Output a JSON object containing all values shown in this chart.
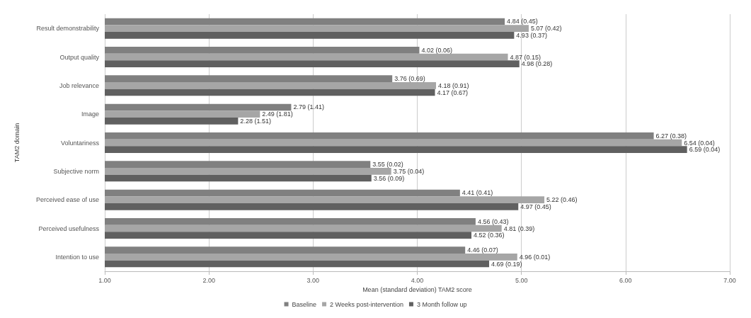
{
  "chart_data": {
    "type": "bar",
    "orientation": "horizontal",
    "xlabel": "Mean (standard deviation) TAM2 score",
    "ylabel": "TAM2 domain",
    "categories": [
      "Result demonstrability",
      "Output quality",
      "Job relevance",
      "Image",
      "Voluntariness",
      "Subjective norm",
      "Perceived ease of use",
      "Perceived usefulness",
      "Intention to use"
    ],
    "series": [
      {
        "name": "Baseline",
        "color": "#808080",
        "values": [
          4.84,
          4.02,
          3.76,
          2.79,
          6.27,
          3.55,
          4.41,
          4.56,
          4.46
        ],
        "value_labels": [
          "4.84 (0.45)",
          "4.02 (0.06)",
          "3.76 (0.69)",
          "2.79 (1.41)",
          "6.27 (0.38)",
          "3.55 (0.02)",
          "4.41 (0.41)",
          "4.56 (0.43)",
          "4.46 (0.07)"
        ]
      },
      {
        "name": "2 Weeks post-intervention",
        "color": "#a6a6a6",
        "values": [
          5.07,
          4.87,
          4.18,
          2.49,
          6.54,
          3.75,
          5.22,
          4.81,
          4.96
        ],
        "value_labels": [
          "5.07 (0.42)",
          "4.87 (0.15)",
          "4.18 (0.91)",
          "2.49 (1.81)",
          "6.54 (0.04)",
          "3.75 (0.04)",
          "5.22 (0.46)",
          "4.81 (0.39)",
          "4.96 (0.01)"
        ]
      },
      {
        "name": "3 Month follow up",
        "color": "#606060",
        "values": [
          4.93,
          4.98,
          4.17,
          2.28,
          6.59,
          3.56,
          4.97,
          4.52,
          4.69
        ],
        "value_labels": [
          "4.93 (0.37)",
          "4.98 (0.28)",
          "4.17 (0.67)",
          "2.28 (1.51)",
          "6.59 (0.04)",
          "3.56 (0.09)",
          "4.97 (0.45)",
          "4.52 (0.36)",
          "4.69 (0.19)"
        ]
      }
    ],
    "xlim": [
      1,
      7
    ],
    "xticks": [
      {
        "value": 1,
        "label": "1.00"
      },
      {
        "value": 2,
        "label": "2.00"
      },
      {
        "value": 3,
        "label": "3.00"
      },
      {
        "value": 4,
        "label": "4.00"
      },
      {
        "value": 5,
        "label": "5.00"
      },
      {
        "value": 6,
        "label": "6.00"
      },
      {
        "value": 7,
        "label": "7.00"
      }
    ],
    "grid": "x",
    "legend": "bottom"
  }
}
